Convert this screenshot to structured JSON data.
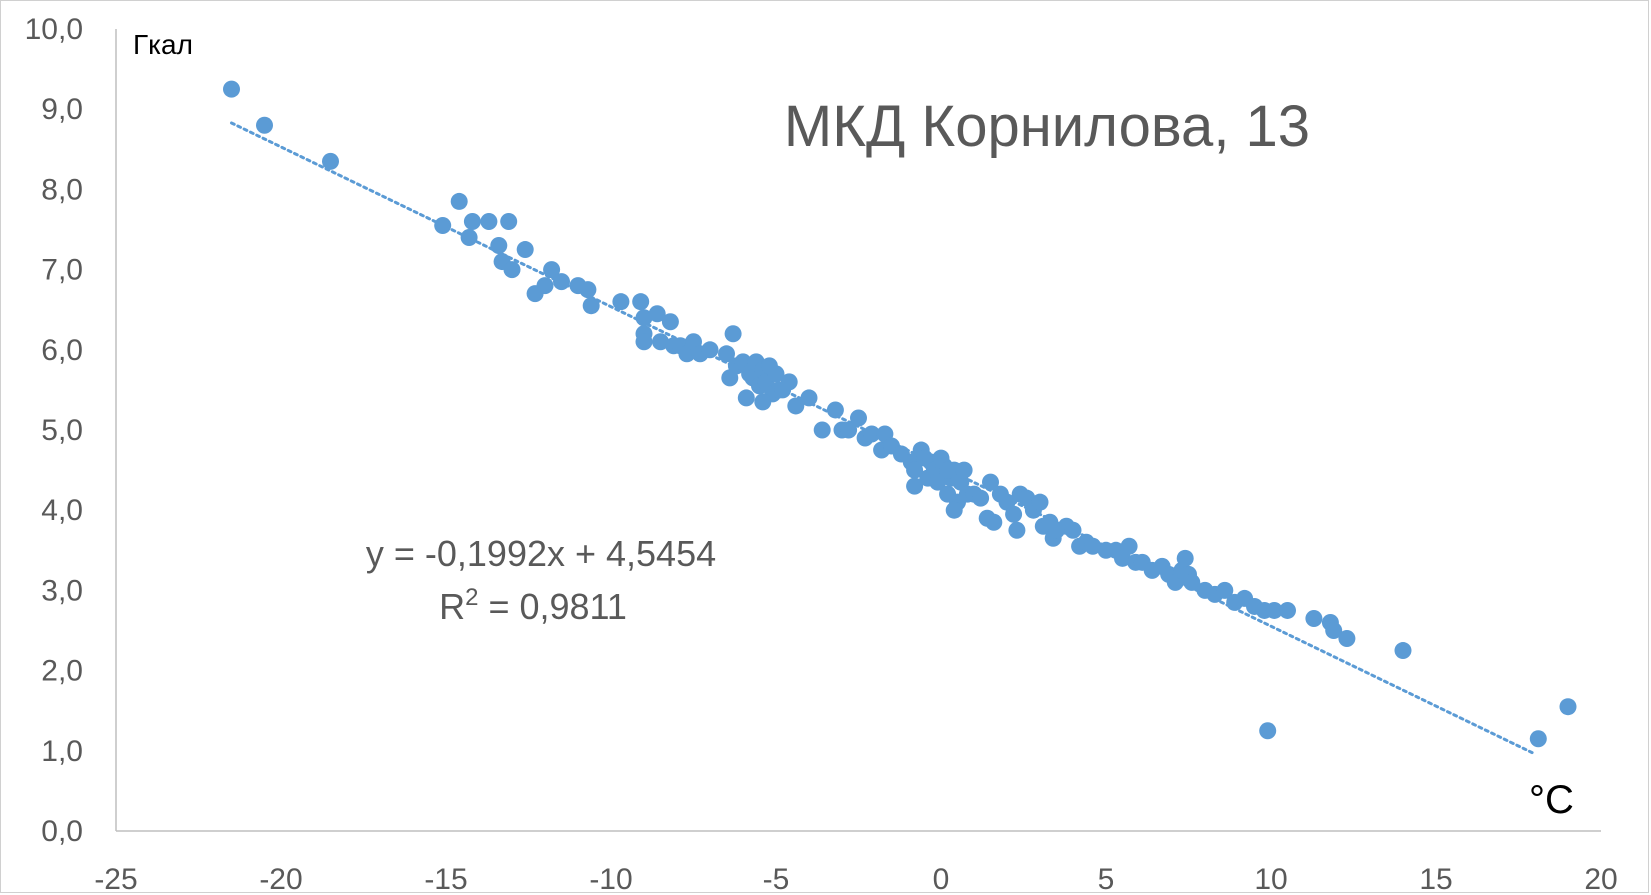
{
  "chart_data": {
    "type": "scatter",
    "title": "МКД Корнилова, 13",
    "ylabel": "Гкал",
    "xlabel": "°C",
    "xlim": [
      -25,
      20
    ],
    "ylim": [
      0,
      10
    ],
    "x_ticks": [
      "-25",
      "-20",
      "-15",
      "-10",
      "-5",
      "0",
      "5",
      "10",
      "15",
      "20"
    ],
    "y_ticks": [
      "0,0",
      "1,0",
      "2,0",
      "3,0",
      "4,0",
      "5,0",
      "6,0",
      "7,0",
      "8,0",
      "9,0",
      "10,0"
    ],
    "trendline": {
      "style": "dotted-linear",
      "slope": -0.1992,
      "intercept": 4.5454,
      "x_range": [
        -21.5,
        18
      ],
      "equation": "y = -0,1992x + 4,5454",
      "r2_label": "R",
      "r2_sup": "2",
      "r2_value": " = 0,9811"
    },
    "colors": {
      "points": "#5b9bd5",
      "trend": "#5b9bd5",
      "axis": "#bfbfbf",
      "text": "#595959"
    },
    "points": [
      [
        -21.5,
        9.25
      ],
      [
        -20.5,
        8.8
      ],
      [
        -18.5,
        8.35
      ],
      [
        -15.1,
        7.55
      ],
      [
        -14.6,
        7.85
      ],
      [
        -14.2,
        7.6
      ],
      [
        -14.3,
        7.4
      ],
      [
        -13.7,
        7.6
      ],
      [
        -13.1,
        7.6
      ],
      [
        -13.4,
        7.3
      ],
      [
        -13.3,
        7.1
      ],
      [
        -13.0,
        7.0
      ],
      [
        -12.6,
        7.25
      ],
      [
        -12.3,
        6.7
      ],
      [
        -12.0,
        6.8
      ],
      [
        -11.8,
        7.0
      ],
      [
        -11.5,
        6.85
      ],
      [
        -11.0,
        6.8
      ],
      [
        -10.7,
        6.75
      ],
      [
        -10.6,
        6.55
      ],
      [
        -9.7,
        6.6
      ],
      [
        -9.1,
        6.6
      ],
      [
        -9.0,
        6.4
      ],
      [
        -9.0,
        6.2
      ],
      [
        -9.0,
        6.1
      ],
      [
        -8.6,
        6.45
      ],
      [
        -8.5,
        6.1
      ],
      [
        -8.2,
        6.35
      ],
      [
        -8.1,
        6.05
      ],
      [
        -7.9,
        6.05
      ],
      [
        -7.7,
        5.95
      ],
      [
        -7.5,
        6.1
      ],
      [
        -7.3,
        5.95
      ],
      [
        -7.0,
        6.0
      ],
      [
        -6.5,
        5.95
      ],
      [
        -6.3,
        6.2
      ],
      [
        -6.2,
        5.8
      ],
      [
        -6.0,
        5.85
      ],
      [
        -5.8,
        5.7
      ],
      [
        -5.7,
        5.65
      ],
      [
        -5.6,
        5.85
      ],
      [
        -5.5,
        5.55
      ],
      [
        -5.4,
        5.75
      ],
      [
        -5.3,
        5.6
      ],
      [
        -5.2,
        5.8
      ],
      [
        -5.1,
        5.45
      ],
      [
        -5.0,
        5.7
      ],
      [
        -4.9,
        5.5
      ],
      [
        -4.8,
        5.5
      ],
      [
        -4.6,
        5.6
      ],
      [
        -4.4,
        5.3
      ],
      [
        -6.4,
        5.65
      ],
      [
        -5.9,
        5.4
      ],
      [
        -5.4,
        5.35
      ],
      [
        -4.0,
        5.4
      ],
      [
        -3.6,
        5.0
      ],
      [
        -3.2,
        5.25
      ],
      [
        -3.0,
        5.0
      ],
      [
        -2.8,
        5.0
      ],
      [
        -2.5,
        5.15
      ],
      [
        -2.3,
        4.9
      ],
      [
        -2.1,
        4.95
      ],
      [
        -1.8,
        4.75
      ],
      [
        -1.7,
        4.95
      ],
      [
        -1.5,
        4.8
      ],
      [
        -1.2,
        4.7
      ],
      [
        -0.9,
        4.6
      ],
      [
        -0.8,
        4.5
      ],
      [
        -0.6,
        4.75
      ],
      [
        -0.5,
        4.65
      ],
      [
        -0.4,
        4.4
      ],
      [
        -0.3,
        4.6
      ],
      [
        -0.2,
        4.5
      ],
      [
        -0.1,
        4.35
      ],
      [
        0.0,
        4.65
      ],
      [
        0.1,
        4.55
      ],
      [
        0.2,
        4.2
      ],
      [
        0.3,
        4.4
      ],
      [
        0.4,
        4.5
      ],
      [
        0.5,
        4.1
      ],
      [
        0.6,
        4.35
      ],
      [
        0.7,
        4.5
      ],
      [
        0.8,
        4.2
      ],
      [
        -0.8,
        4.3
      ],
      [
        0.2,
        4.5
      ],
      [
        0.4,
        4.0
      ],
      [
        1.0,
        4.2
      ],
      [
        1.2,
        4.15
      ],
      [
        1.4,
        3.9
      ],
      [
        1.5,
        4.35
      ],
      [
        1.6,
        3.85
      ],
      [
        1.8,
        4.2
      ],
      [
        2.0,
        4.1
      ],
      [
        2.2,
        3.95
      ],
      [
        2.3,
        3.75
      ],
      [
        2.4,
        4.2
      ],
      [
        2.6,
        4.15
      ],
      [
        2.8,
        4.0
      ],
      [
        3.0,
        4.1
      ],
      [
        3.1,
        3.8
      ],
      [
        3.3,
        3.85
      ],
      [
        3.4,
        3.65
      ],
      [
        3.5,
        3.75
      ],
      [
        3.8,
        3.8
      ],
      [
        4.0,
        3.75
      ],
      [
        4.2,
        3.55
      ],
      [
        4.4,
        3.6
      ],
      [
        4.6,
        3.55
      ],
      [
        5.0,
        3.5
      ],
      [
        5.3,
        3.5
      ],
      [
        5.5,
        3.4
      ],
      [
        5.7,
        3.55
      ],
      [
        5.9,
        3.35
      ],
      [
        6.1,
        3.35
      ],
      [
        6.4,
        3.25
      ],
      [
        6.7,
        3.3
      ],
      [
        6.9,
        3.2
      ],
      [
        7.1,
        3.1
      ],
      [
        7.3,
        3.25
      ],
      [
        7.5,
        3.2
      ],
      [
        7.6,
        3.1
      ],
      [
        7.4,
        3.4
      ],
      [
        8.0,
        3.0
      ],
      [
        8.3,
        2.95
      ],
      [
        8.6,
        3.0
      ],
      [
        8.9,
        2.85
      ],
      [
        9.2,
        2.9
      ],
      [
        9.5,
        2.8
      ],
      [
        9.8,
        2.75
      ],
      [
        10.1,
        2.75
      ],
      [
        10.5,
        2.75
      ],
      [
        11.3,
        2.65
      ],
      [
        11.8,
        2.6
      ],
      [
        11.9,
        2.5
      ],
      [
        12.3,
        2.4
      ],
      [
        14.0,
        2.25
      ],
      [
        9.9,
        1.25
      ],
      [
        18.1,
        1.15
      ],
      [
        19.0,
        1.55
      ]
    ]
  }
}
